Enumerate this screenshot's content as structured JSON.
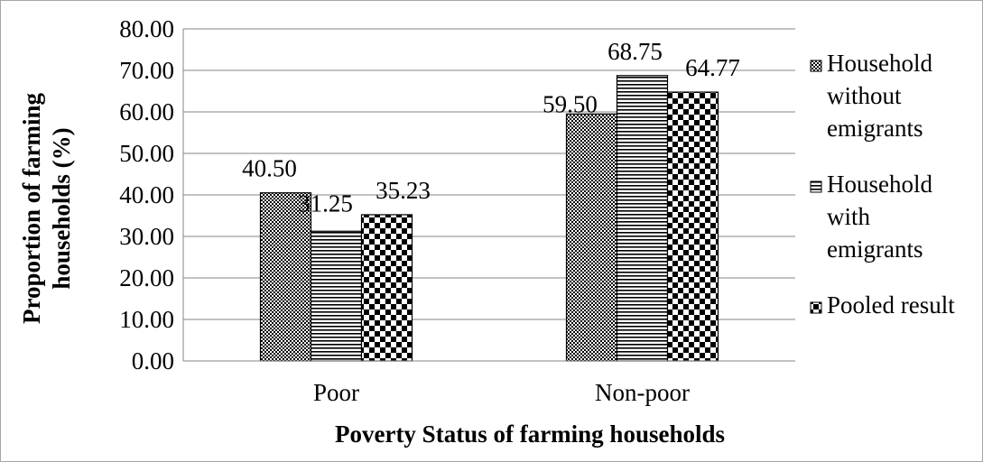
{
  "chart_data": {
    "type": "bar",
    "title": "",
    "xlabel": "Poverty Status of farming households",
    "ylabel_lines": [
      "Proportion of farming",
      "households (%)"
    ],
    "ylim": [
      0,
      80
    ],
    "yticks": [
      "0.00",
      "10.00",
      "20.00",
      "30.00",
      "40.00",
      "50.00",
      "60.00",
      "70.00",
      "80.00"
    ],
    "grid": true,
    "legend_position": "right",
    "categories": [
      "Poor",
      "Non-poor"
    ],
    "series": [
      {
        "name_lines": [
          "Household",
          "without",
          "emigrants"
        ],
        "values": [
          40.5,
          59.5
        ],
        "labels": [
          "40.50",
          "59.50"
        ],
        "pattern": "dots"
      },
      {
        "name_lines": [
          "Household",
          "with",
          "emigrants"
        ],
        "values": [
          31.25,
          68.75
        ],
        "labels": [
          "31.25",
          "68.75"
        ],
        "pattern": "hstripes"
      },
      {
        "name_lines": [
          "Pooled result"
        ],
        "values": [
          35.23,
          64.77
        ],
        "labels": [
          "35.23",
          "64.77"
        ],
        "pattern": "checker"
      }
    ],
    "colors": {
      "bar_fill": "#000000",
      "background": "#ffffff",
      "grid": "#868686",
      "border": "#a6a6a6"
    }
  }
}
